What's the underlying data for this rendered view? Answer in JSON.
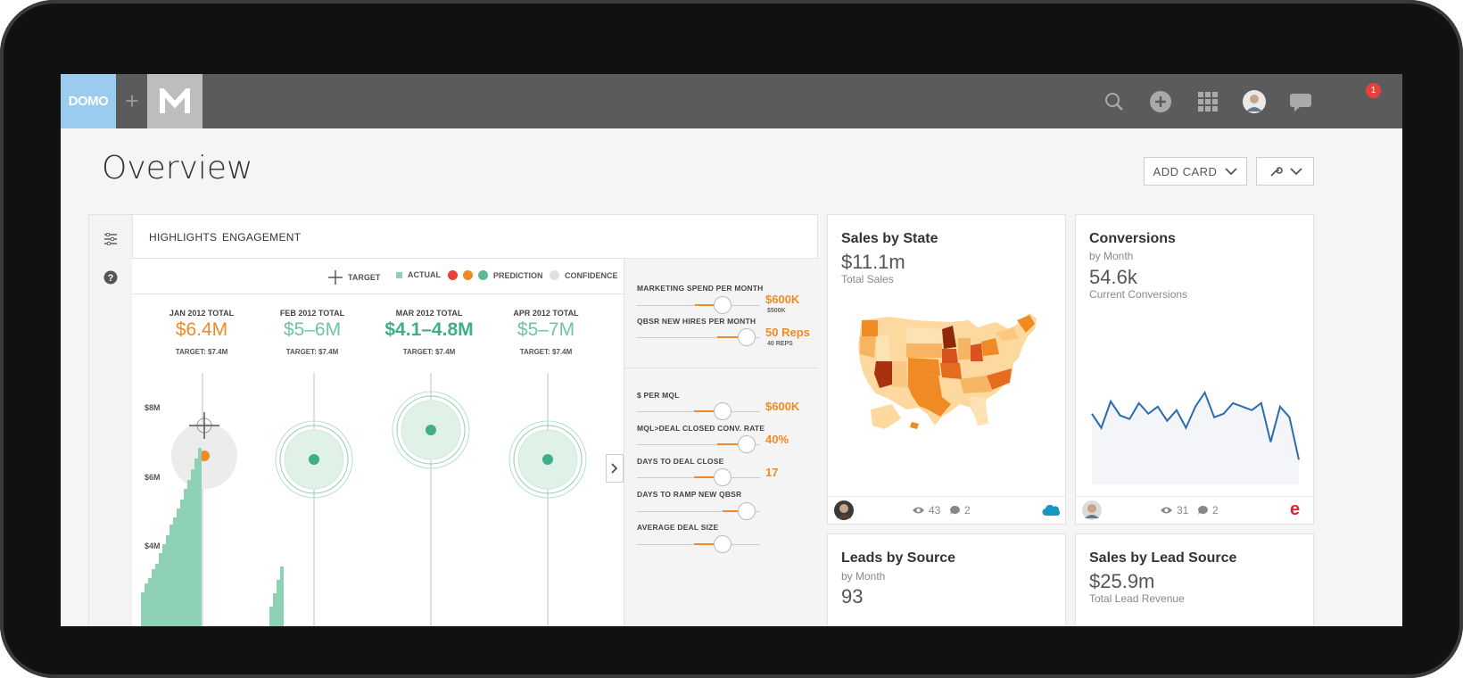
{
  "brand": {
    "domo": "DOMO",
    "plus": "+",
    "m": "M"
  },
  "topbar": {
    "notification_count": "1"
  },
  "page": {
    "title": "Overview",
    "add_card": "ADD CARD"
  },
  "highlights": {
    "tabs": [
      "HIGHLIGHTS",
      "ENGAGEMENT"
    ],
    "legend": {
      "target": "TARGET",
      "actual": "ACTUAL",
      "prediction": "PREDICTION",
      "confidence": "CONFIDENCE"
    },
    "months": [
      {
        "label": "JAN 2012 TOTAL",
        "value": "$6.4M",
        "target": "TARGET: $7.4M",
        "color": "#f08a24"
      },
      {
        "label": "FEB 2012 TOTAL",
        "value": "$5–6M",
        "target": "TARGET: $7.4M",
        "color": "#6cc4a4"
      },
      {
        "label": "MAR 2012 TOTAL",
        "value": "$4.1–4.8M",
        "target": "TARGET: $7.4M",
        "color": "#3fae8a"
      },
      {
        "label": "APR 2012 TOTAL",
        "value": "$5–7M",
        "target": "TARGET: $7.4M",
        "color": "#6cc4a4"
      }
    ],
    "y_labels": [
      "$8M",
      "$6M",
      "$4M"
    ],
    "controls": [
      {
        "label": "MARKETING SPEND PER MONTH",
        "value": "$600K",
        "sub": "$500K"
      },
      {
        "label": "QBSR NEW HIRES PER MONTH",
        "value": "50 Reps",
        "sub": "40 REPS"
      },
      {
        "label": "$ PER MQL",
        "value": "$600K",
        "sub": ""
      },
      {
        "label": "MQL>DEAL CLOSED CONV. RATE",
        "value": "40%",
        "sub": ""
      },
      {
        "label": "DAYS TO DEAL CLOSE",
        "value": "17",
        "sub": ""
      },
      {
        "label": "DAYS TO RAMP NEW QBSR",
        "value": "",
        "sub": ""
      },
      {
        "label": "AVERAGE DEAL SIZE",
        "value": "",
        "sub": ""
      }
    ]
  },
  "cards": {
    "sales_by_state": {
      "title": "Sales by State",
      "value": "$11.1m",
      "sub": "Total Sales",
      "views": "43",
      "comments": "2"
    },
    "conversions": {
      "title": "Conversions",
      "sub1": "by Month",
      "value": "54.6k",
      "sub2": "Current Conversions",
      "views": "31",
      "comments": "2"
    },
    "leads_by_source": {
      "title": "Leads by Source",
      "sub": "by Month",
      "value": "93"
    },
    "sales_by_lead_source": {
      "title": "Sales by Lead Source",
      "value": "$25.9m",
      "sub": "Total Lead Revenue"
    }
  },
  "conversions_line": [
    38,
    30,
    45,
    37,
    35,
    44,
    38,
    42,
    34,
    40,
    30,
    42,
    50,
    36,
    38,
    44,
    42,
    40,
    44,
    22,
    42,
    36,
    12
  ]
}
